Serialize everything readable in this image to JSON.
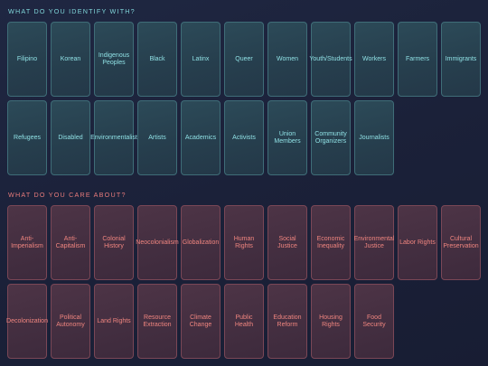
{
  "identity": {
    "title": "WHAT DO YOU IDENTIFY WITH?",
    "items": [
      "Filipino",
      "Korean",
      "Indigenous Peoples",
      "Black",
      "Latinx",
      "Queer",
      "Women",
      "Youth/Students",
      "Workers",
      "Farmers",
      "Immigrants",
      "Refugees",
      "Disabled",
      "Environmentalist",
      "Artists",
      "Academics",
      "Activists",
      "Union Members",
      "Community Organizers",
      "Journalists"
    ]
  },
  "care": {
    "title": "WHAT DO YOU CARE ABOUT?",
    "items": [
      "Anti-Imperialism",
      "Anti-Capitalism",
      "Colonial History",
      "Neocolonialism",
      "Globalization",
      "Human Rights",
      "Social Justice",
      "Economic Inequality",
      "Environmental Justice",
      "Labor Rights",
      "Cultural Preservation",
      "Decolonization",
      "Political Autonomy",
      "Land Rights",
      "Resource Extraction",
      "Climate Change",
      "Public Health",
      "Education Reform",
      "Housing Rights",
      "Food Security"
    ]
  },
  "colors": {
    "identity_accent": "#8fe0e4",
    "care_accent": "#f0857f",
    "background": "#1b2139"
  }
}
